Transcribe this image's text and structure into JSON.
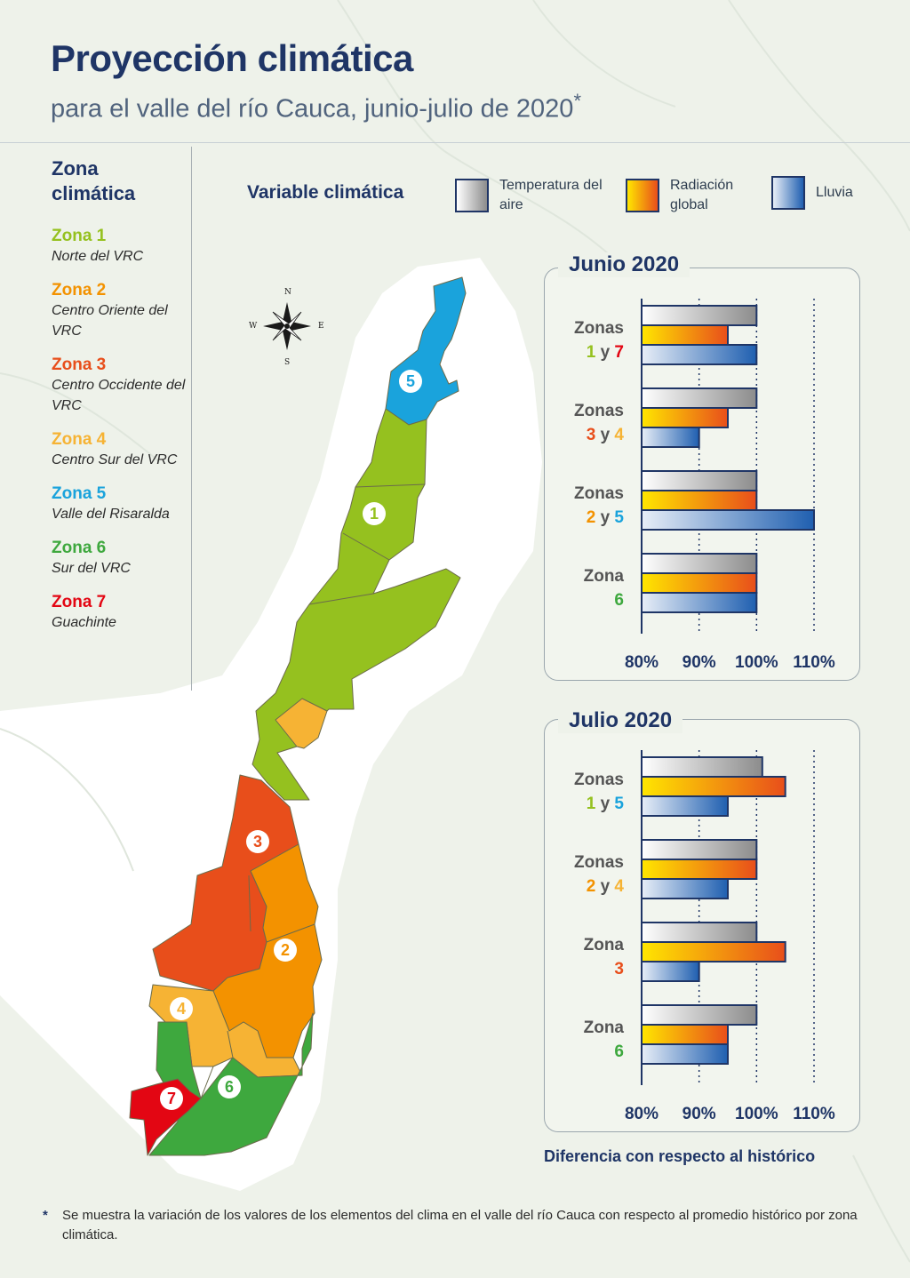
{
  "header": {
    "title": "Proyección climática",
    "subtitle": "para el valle del río Cauca, junio-julio de 2020",
    "subtitle_mark": "*"
  },
  "legend": {
    "title": "Zona climática",
    "zones": [
      {
        "name": "Zona 1",
        "desc": "Norte del VRC",
        "color": "#95c11f"
      },
      {
        "name": "Zona 2",
        "desc": "Centro Oriente del VRC",
        "color": "#f39200"
      },
      {
        "name": "Zona 3",
        "desc": "Centro Occidente del VRC",
        "color": "#e84e1b"
      },
      {
        "name": "Zona 4",
        "desc": "Centro Sur del VRC",
        "color": "#f6b334"
      },
      {
        "name": "Zona 5",
        "desc": "Valle del Risaralda",
        "color": "#1aa3dc"
      },
      {
        "name": "Zona 6",
        "desc": "Sur del VRC",
        "color": "#3ea83e"
      },
      {
        "name": "Zona 7",
        "desc": "Guachinte",
        "color": "#e30613"
      }
    ]
  },
  "variables": {
    "title": "Variable climática",
    "items": [
      {
        "label": "Temperatura del aire",
        "gradient": [
          "#ffffff",
          "#8c8c8c"
        ]
      },
      {
        "label": "Radiación global",
        "gradient": [
          "#ffe600",
          "#e84e1b"
        ]
      },
      {
        "label": "Lluvia",
        "gradient": [
          "#e8eef7",
          "#1f5fb0"
        ]
      }
    ]
  },
  "compass": {
    "n": "N",
    "s": "S",
    "e": "E",
    "w": "W"
  },
  "map": {
    "labels": [
      {
        "num": "1",
        "color": "#95c11f"
      },
      {
        "num": "2",
        "color": "#f39200"
      },
      {
        "num": "3",
        "color": "#e84e1b"
      },
      {
        "num": "4",
        "color": "#f6b334"
      },
      {
        "num": "5",
        "color": "#1aa3dc"
      },
      {
        "num": "6",
        "color": "#3ea83e"
      },
      {
        "num": "7",
        "color": "#e30613"
      }
    ]
  },
  "chart_data": [
    {
      "type": "bar",
      "orientation": "horizontal",
      "title": "Junio 2020",
      "xlabel": "Diferencia con respecto al histórico",
      "xlim": [
        80,
        110
      ],
      "x_ticks": [
        "80%",
        "90%",
        "100%",
        "110%"
      ],
      "series_order": [
        "Temperatura del aire",
        "Radiación global",
        "Lluvia"
      ],
      "groups": [
        {
          "label_top": "Zonas",
          "label_parts": [
            {
              "t": "1",
              "c": "#95c11f"
            },
            {
              "t": " y ",
              "c": "#555555"
            },
            {
              "t": "7",
              "c": "#e30613"
            }
          ],
          "values": [
            100,
            95,
            100
          ]
        },
        {
          "label_top": "Zonas",
          "label_parts": [
            {
              "t": "3",
              "c": "#e84e1b"
            },
            {
              "t": " y ",
              "c": "#555555"
            },
            {
              "t": "4",
              "c": "#f6b334"
            }
          ],
          "values": [
            100,
            95,
            90
          ]
        },
        {
          "label_top": "Zonas",
          "label_parts": [
            {
              "t": "2",
              "c": "#f39200"
            },
            {
              "t": " y ",
              "c": "#555555"
            },
            {
              "t": "5",
              "c": "#1aa3dc"
            }
          ],
          "values": [
            100,
            100,
            110
          ]
        },
        {
          "label_top": "Zona",
          "label_parts": [
            {
              "t": "6",
              "c": "#3ea83e"
            }
          ],
          "values": [
            100,
            100,
            100
          ]
        }
      ]
    },
    {
      "type": "bar",
      "orientation": "horizontal",
      "title": "Julio 2020",
      "xlabel": "Diferencia con respecto al histórico",
      "xlim": [
        80,
        110
      ],
      "x_ticks": [
        "80%",
        "90%",
        "100%",
        "110%"
      ],
      "series_order": [
        "Temperatura del aire",
        "Radiación global",
        "Lluvia"
      ],
      "groups": [
        {
          "label_top": "Zonas",
          "label_parts": [
            {
              "t": "1",
              "c": "#95c11f"
            },
            {
              "t": " y ",
              "c": "#555555"
            },
            {
              "t": "5",
              "c": "#1aa3dc"
            }
          ],
          "values": [
            101,
            105,
            95
          ]
        },
        {
          "label_top": "Zonas",
          "label_parts": [
            {
              "t": "2",
              "c": "#f39200"
            },
            {
              "t": " y ",
              "c": "#555555"
            },
            {
              "t": "4",
              "c": "#f6b334"
            }
          ],
          "values": [
            100,
            100,
            95
          ]
        },
        {
          "label_top": "Zona",
          "label_parts": [
            {
              "t": "3",
              "c": "#e84e1b"
            }
          ],
          "values": [
            100,
            105,
            90
          ]
        },
        {
          "label_top": "Zona",
          "label_parts": [
            {
              "t": "6",
              "c": "#3ea83e"
            }
          ],
          "values": [
            100,
            95,
            95
          ]
        }
      ]
    }
  ],
  "axis_title": "Diferencia con respecto al histórico",
  "footnote": {
    "mark": "*",
    "text": "Se muestra la variación de los valores de los elementos del clima en el valle del río Cauca con respecto al promedio histórico por zona climática."
  }
}
